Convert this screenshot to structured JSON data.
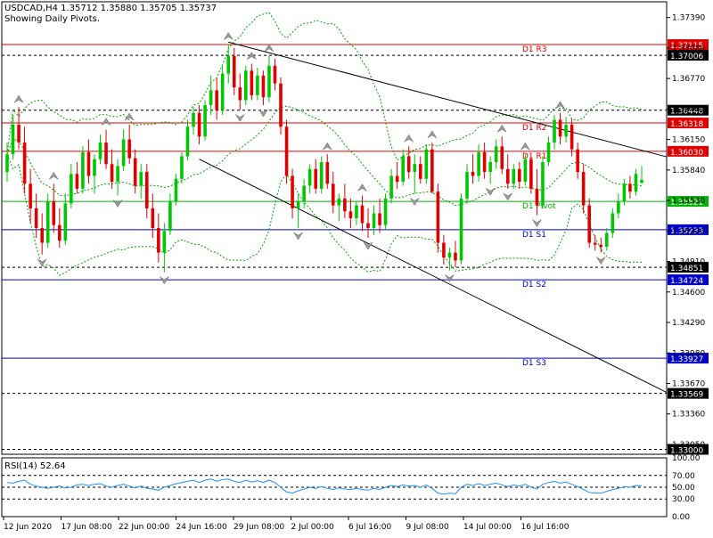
{
  "header": {
    "symbol_line": "USDCAD,H4  1.35712 1.35880 1.35705 1.35737",
    "subtitle": "Showing Daily Pivots."
  },
  "rsi_label": "RSI(14) 52.64",
  "colors": {
    "background": "#ffffff",
    "bull": "#00c800",
    "bear": "#e00000",
    "resistance": "#e00000",
    "support": "#0000c8",
    "pivot": "#00b400",
    "dashed_level": "#000000",
    "bollinger": "#00a000",
    "rsi_line": "#1e90ff",
    "axis_text": "#000000"
  },
  "chart_data": {
    "type": "candlestick",
    "symbol": "USDCAD",
    "timeframe": "H4",
    "ohlc_last": {
      "open": 1.35712,
      "high": 1.3588,
      "low": 1.35705,
      "close": 1.35737
    },
    "ylim": [
      1.3295,
      1.3755
    ],
    "y_ticks": [
      "1.37390",
      "1.37080",
      "1.36770",
      "1.36460",
      "1.36150",
      "1.35840",
      "1.35530",
      "1.35220",
      "1.34910",
      "1.34600",
      "1.34290",
      "1.33980",
      "1.33670",
      "1.33360",
      "1.33050"
    ],
    "x_tick_labels": [
      "12 Jun 2020",
      "17 Jun 08:00",
      "22 Jun 00:00",
      "24 Jun 16:00",
      "29 Jun 08:00",
      "2 Jul 00:00",
      "6 Jul 16:00",
      "9 Jul 08:00",
      "14 Jul 00:00",
      "16 Jul 16:00"
    ],
    "pivot_levels": [
      {
        "name": "D1 R3",
        "value": 1.37115,
        "tag": "1.37115",
        "kind": "resistance"
      },
      {
        "name": "D1 R2",
        "value": 1.36318,
        "tag": "1.36318",
        "kind": "resistance"
      },
      {
        "name": "D1 R1",
        "value": 1.3603,
        "tag": "1.36030",
        "kind": "resistance"
      },
      {
        "name": "D1 Pivot",
        "value": 1.35521,
        "tag": "1.35521",
        "kind": "pivot"
      },
      {
        "name": "D1 S1",
        "value": 1.35233,
        "tag": "1.35233",
        "kind": "support"
      },
      {
        "name": "D1 S2",
        "value": 1.34724,
        "tag": "1.34724",
        "kind": "support"
      },
      {
        "name": "D1 S3",
        "value": 1.33927,
        "tag": "1.33927",
        "kind": "support"
      }
    ],
    "dashed_levels": [
      {
        "value": 1.37006,
        "tag": "1.37006"
      },
      {
        "value": 1.36448,
        "tag": "1.36448"
      },
      {
        "value": 1.34851,
        "tag": "1.34851"
      },
      {
        "value": 1.33569,
        "tag": "1.33569"
      },
      {
        "value": 1.33,
        "tag": "1.33000"
      }
    ],
    "trendlines": [
      {
        "name": "upper-trendline",
        "x1_bar": 38,
        "y1": 1.3714,
        "x2_bar": 120,
        "y2": 1.3587
      },
      {
        "name": "lower-trendline",
        "x1_bar": 33,
        "y1": 1.3595,
        "x2_bar": 120,
        "y2": 1.3338
      }
    ],
    "candles": [
      [
        1.3582,
        1.3612,
        1.3572,
        1.36
      ],
      [
        1.36,
        1.364,
        1.3595,
        1.363
      ],
      [
        1.363,
        1.3648,
        1.3605,
        1.3612
      ],
      [
        1.3612,
        1.3628,
        1.356,
        1.357
      ],
      [
        1.357,
        1.3585,
        1.353,
        1.3545
      ],
      [
        1.3545,
        1.356,
        1.3515,
        1.3525
      ],
      [
        1.3525,
        1.354,
        1.3498,
        1.351
      ],
      [
        1.351,
        1.356,
        1.3505,
        1.3552
      ],
      [
        1.3552,
        1.357,
        1.352,
        1.3528
      ],
      [
        1.3528,
        1.3545,
        1.3505,
        1.3512
      ],
      [
        1.3512,
        1.356,
        1.3508,
        1.355
      ],
      [
        1.355,
        1.359,
        1.3545,
        1.358
      ],
      [
        1.358,
        1.3592,
        1.356,
        1.3565
      ],
      [
        1.3565,
        1.3608,
        1.356,
        1.3602
      ],
      [
        1.3602,
        1.3615,
        1.357,
        1.3578
      ],
      [
        1.3578,
        1.36,
        1.356,
        1.3595
      ],
      [
        1.3595,
        1.362,
        1.359,
        1.3612
      ],
      [
        1.3612,
        1.3625,
        1.3585,
        1.359
      ],
      [
        1.359,
        1.3605,
        1.3565,
        1.3572
      ],
      [
        1.3572,
        1.3595,
        1.3558,
        1.3588
      ],
      [
        1.3588,
        1.3625,
        1.3583,
        1.3615
      ],
      [
        1.3615,
        1.363,
        1.359,
        1.3596
      ],
      [
        1.3596,
        1.3605,
        1.356,
        1.3568
      ],
      [
        1.3568,
        1.359,
        1.3555,
        1.3582
      ],
      [
        1.3582,
        1.359,
        1.3535,
        1.3545
      ],
      [
        1.3545,
        1.356,
        1.3515,
        1.3525
      ],
      [
        1.3525,
        1.354,
        1.349,
        1.35
      ],
      [
        1.35,
        1.353,
        1.348,
        1.3522
      ],
      [
        1.3522,
        1.356,
        1.3518,
        1.3552
      ],
      [
        1.3552,
        1.358,
        1.3548,
        1.3575
      ],
      [
        1.3575,
        1.3602,
        1.357,
        1.3598
      ],
      [
        1.3598,
        1.3635,
        1.3594,
        1.3628
      ],
      [
        1.3628,
        1.3648,
        1.362,
        1.3642
      ],
      [
        1.3642,
        1.365,
        1.361,
        1.3618
      ],
      [
        1.3618,
        1.3655,
        1.3614,
        1.365
      ],
      [
        1.365,
        1.368,
        1.364,
        1.3665
      ],
      [
        1.3665,
        1.3678,
        1.3635,
        1.3645
      ],
      [
        1.3645,
        1.369,
        1.364,
        1.3682
      ],
      [
        1.3682,
        1.3712,
        1.3672,
        1.37
      ],
      [
        1.37,
        1.3708,
        1.366,
        1.3668
      ],
      [
        1.3668,
        1.3682,
        1.3645,
        1.3655
      ],
      [
        1.3655,
        1.369,
        1.365,
        1.3685
      ],
      [
        1.3685,
        1.3692,
        1.3655,
        1.366
      ],
      [
        1.366,
        1.3688,
        1.3655,
        1.368
      ],
      [
        1.368,
        1.3685,
        1.365,
        1.3658
      ],
      [
        1.3658,
        1.37,
        1.3653,
        1.369
      ],
      [
        1.369,
        1.3697,
        1.3665,
        1.3672
      ],
      [
        1.3672,
        1.3678,
        1.362,
        1.3628
      ],
      [
        1.3628,
        1.3635,
        1.357,
        1.3578
      ],
      [
        1.3578,
        1.3585,
        1.3535,
        1.3545
      ],
      [
        1.3545,
        1.356,
        1.3525,
        1.3552
      ],
      [
        1.3552,
        1.3575,
        1.3545,
        1.3568
      ],
      [
        1.3568,
        1.359,
        1.356,
        1.3585
      ],
      [
        1.3585,
        1.3595,
        1.356,
        1.3565
      ],
      [
        1.3565,
        1.3598,
        1.356,
        1.3592
      ],
      [
        1.3592,
        1.36,
        1.3565,
        1.357
      ],
      [
        1.357,
        1.3582,
        1.354,
        1.3548
      ],
      [
        1.3548,
        1.356,
        1.3532,
        1.3555
      ],
      [
        1.3555,
        1.357,
        1.3535,
        1.3542
      ],
      [
        1.3542,
        1.3555,
        1.3525,
        1.3535
      ],
      [
        1.3535,
        1.3552,
        1.3528,
        1.3548
      ],
      [
        1.3548,
        1.3558,
        1.3522,
        1.353
      ],
      [
        1.353,
        1.3545,
        1.3515,
        1.3525
      ],
      [
        1.3525,
        1.3548,
        1.3518,
        1.354
      ],
      [
        1.354,
        1.3555,
        1.352,
        1.3528
      ],
      [
        1.3528,
        1.356,
        1.3524,
        1.3555
      ],
      [
        1.3555,
        1.3585,
        1.355,
        1.3578
      ],
      [
        1.3578,
        1.3592,
        1.3565,
        1.3572
      ],
      [
        1.3572,
        1.3605,
        1.3568,
        1.3598
      ],
      [
        1.3598,
        1.3608,
        1.3575,
        1.3582
      ],
      [
        1.3582,
        1.36,
        1.356,
        1.359
      ],
      [
        1.359,
        1.3598,
        1.357,
        1.3575
      ],
      [
        1.3575,
        1.361,
        1.357,
        1.3605
      ],
      [
        1.3605,
        1.3612,
        1.356,
        1.3562
      ],
      [
        1.3562,
        1.357,
        1.35,
        1.351
      ],
      [
        1.351,
        1.3518,
        1.3488,
        1.3495
      ],
      [
        1.3495,
        1.3505,
        1.3482,
        1.35
      ],
      [
        1.35,
        1.3512,
        1.3485,
        1.3492
      ],
      [
        1.3492,
        1.356,
        1.3488,
        1.3555
      ],
      [
        1.3555,
        1.359,
        1.355,
        1.3582
      ],
      [
        1.3582,
        1.36,
        1.357,
        1.3578
      ],
      [
        1.3578,
        1.361,
        1.3572,
        1.3602
      ],
      [
        1.3602,
        1.3612,
        1.3575,
        1.3582
      ],
      [
        1.3582,
        1.3598,
        1.357,
        1.3592
      ],
      [
        1.3592,
        1.3615,
        1.3585,
        1.3608
      ],
      [
        1.3608,
        1.3618,
        1.358,
        1.3585
      ],
      [
        1.3585,
        1.36,
        1.3565,
        1.357
      ],
      [
        1.357,
        1.359,
        1.3565,
        1.3585
      ],
      [
        1.3585,
        1.3592,
        1.3565,
        1.3572
      ],
      [
        1.3572,
        1.36,
        1.3568,
        1.3595
      ],
      [
        1.3595,
        1.3598,
        1.356,
        1.3565
      ],
      [
        1.3565,
        1.3585,
        1.3538,
        1.3548
      ],
      [
        1.3548,
        1.3598,
        1.3545,
        1.3592
      ],
      [
        1.3592,
        1.3618,
        1.3588,
        1.3612
      ],
      [
        1.3612,
        1.364,
        1.3605,
        1.3635
      ],
      [
        1.3635,
        1.3642,
        1.361,
        1.3618
      ],
      [
        1.3618,
        1.3638,
        1.3612,
        1.363
      ],
      [
        1.363,
        1.3636,
        1.3598,
        1.3605
      ],
      [
        1.3605,
        1.3612,
        1.3575,
        1.3582
      ],
      [
        1.3582,
        1.359,
        1.354,
        1.3548
      ],
      [
        1.3548,
        1.3555,
        1.3505,
        1.351
      ],
      [
        1.351,
        1.3518,
        1.3502,
        1.3508
      ],
      [
        1.3508,
        1.3515,
        1.35,
        1.3506
      ],
      [
        1.3506,
        1.3525,
        1.3502,
        1.352
      ],
      [
        1.352,
        1.3545,
        1.3515,
        1.354
      ],
      [
        1.354,
        1.356,
        1.3535,
        1.3552
      ],
      [
        1.3552,
        1.3575,
        1.3548,
        1.357
      ],
      [
        1.357,
        1.3578,
        1.3555,
        1.3562
      ],
      [
        1.3562,
        1.3585,
        1.3558,
        1.358
      ],
      [
        1.3571,
        1.3588,
        1.357,
        1.3574
      ]
    ],
    "rsi": {
      "period": 14,
      "value": 52.64,
      "ylim": [
        0,
        100
      ],
      "y_ticks": [
        "100.00",
        "70.00",
        "50.00",
        "30.00",
        "0.00"
      ],
      "values": [
        58,
        57,
        60,
        62,
        55,
        52,
        50,
        48,
        50,
        52,
        49,
        50,
        54,
        55,
        53,
        55,
        56,
        52,
        50,
        53,
        55,
        52,
        49,
        52,
        48,
        47,
        45,
        50,
        53,
        56,
        58,
        60,
        62,
        58,
        62,
        64,
        60,
        63,
        64,
        60,
        58,
        62,
        59,
        61,
        58,
        62,
        58,
        50,
        42,
        40,
        44,
        47,
        50,
        48,
        51,
        48,
        46,
        49,
        47,
        46,
        48,
        46,
        45,
        48,
        46,
        50,
        53,
        51,
        54,
        52,
        53,
        50,
        54,
        48,
        40,
        38,
        40,
        39,
        50,
        55,
        53,
        56,
        53,
        55,
        57,
        54,
        51,
        54,
        52,
        55,
        50,
        47,
        55,
        58,
        60,
        57,
        59,
        55,
        51,
        46,
        41,
        40,
        40,
        43,
        46,
        48,
        51,
        50,
        53,
        52.6
      ]
    }
  }
}
